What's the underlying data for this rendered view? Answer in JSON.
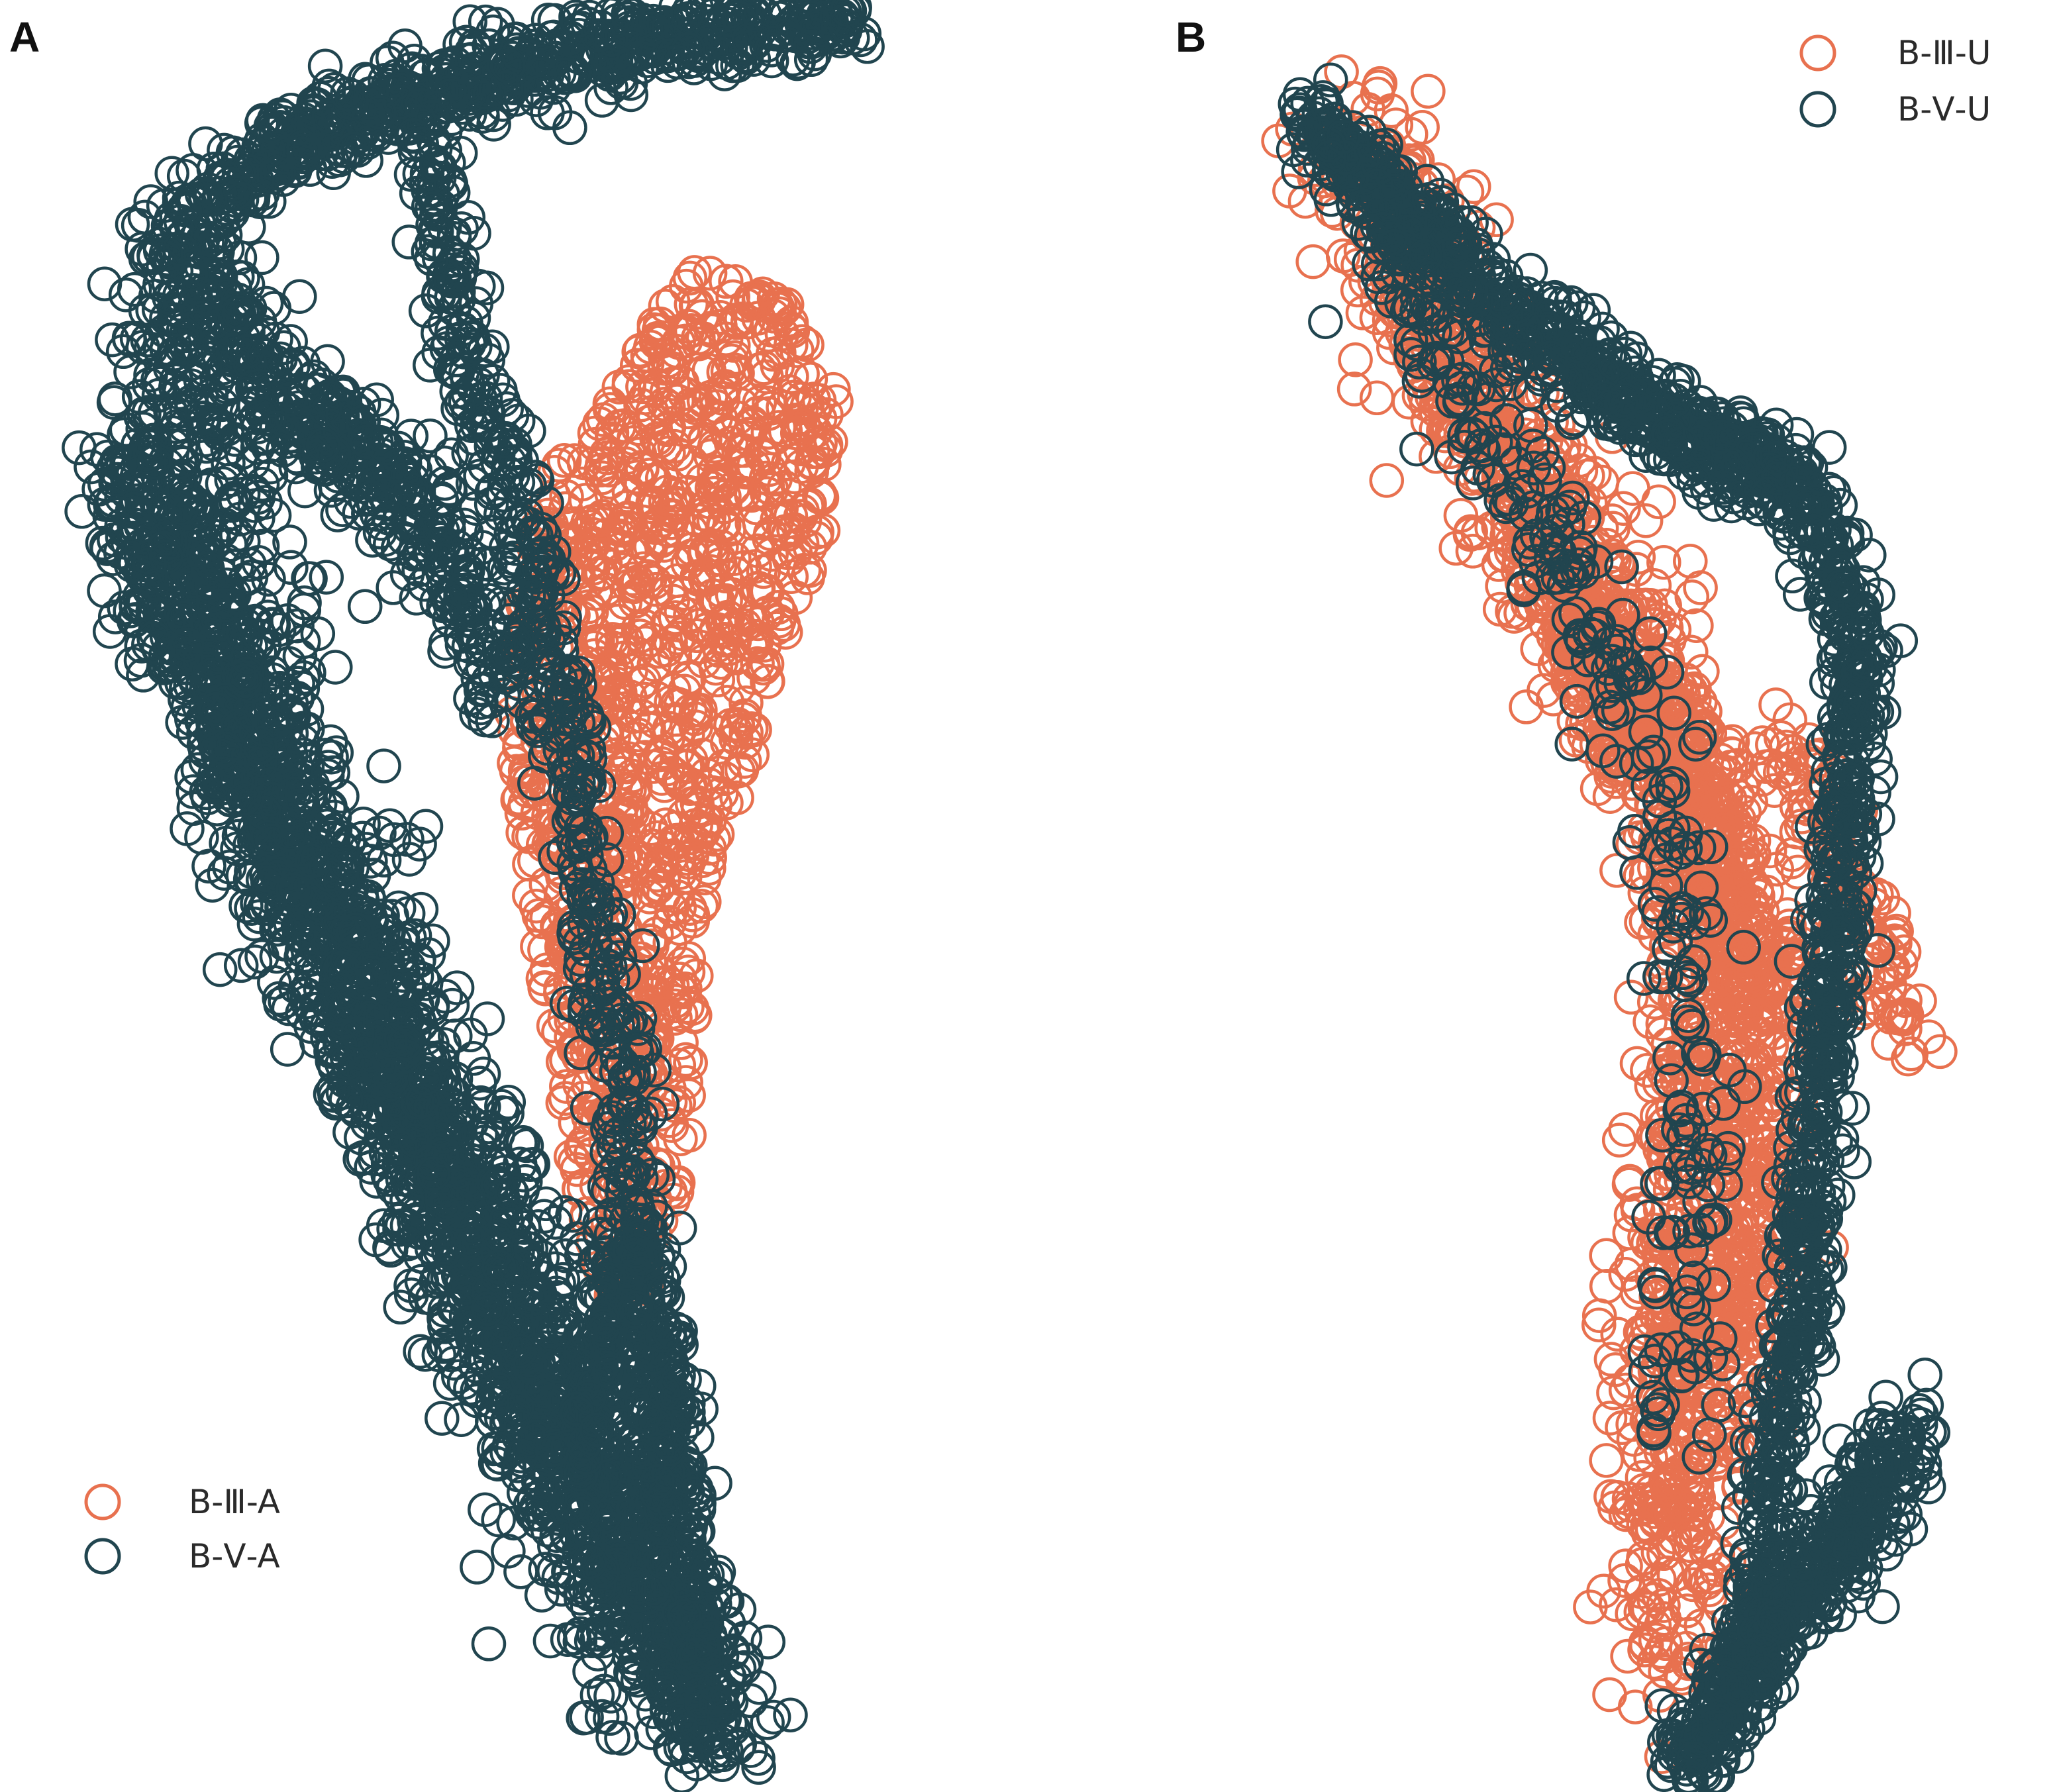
{
  "colors": {
    "series_1": "#e8714f",
    "series_2": "#21454f",
    "background": "#ffffff"
  },
  "chart_data": [
    {
      "panel": "A",
      "type": "scatter",
      "marker": "open-circle",
      "axes_visible": false,
      "grid": false,
      "legend_position": "bottom-left",
      "series": [
        {
          "name": "B-Ⅲ-A",
          "color": "#e8714f",
          "shape_x": [
            0.7,
            0.78,
            0.86,
            0.98,
            1.05,
            1.03,
            0.96,
            0.92,
            0.88,
            0.86,
            0.85,
            0.8,
            0.75,
            0.7,
            0.66,
            0.62,
            0.6,
            0.63,
            0.66
          ],
          "shape_y": [
            0.75,
            0.82,
            0.86,
            0.84,
            0.79,
            0.7,
            0.62,
            0.56,
            0.52,
            0.46,
            0.36,
            0.28,
            0.26,
            0.32,
            0.42,
            0.52,
            0.62,
            0.69,
            0.75
          ],
          "n": 1200
        },
        {
          "name": "B-Ⅴ-A",
          "color": "#21454f",
          "bands": [
            {
              "path": [
                [
                  0.08,
                  0.74
                ],
                [
                  0.3,
                  0.52
                ],
                [
                  0.55,
                  0.3
                ],
                [
                  0.78,
                  0.12
                ],
                [
                  0.9,
                  0.02
                ]
              ],
              "spread": 0.07,
              "n": 1500
            },
            {
              "path": [
                [
                  0.16,
                  0.88
                ],
                [
                  0.26,
                  0.92
                ],
                [
                  0.5,
                  0.96
                ],
                [
                  0.8,
                  0.99
                ],
                [
                  1.08,
                  1.0
                ]
              ],
              "spread": 0.035,
              "n": 700
            },
            {
              "path": [
                [
                  0.12,
                  0.82
                ],
                [
                  0.2,
                  0.7
                ],
                [
                  0.32,
                  0.55
                ],
                [
                  0.45,
                  0.42
                ],
                [
                  0.58,
                  0.3
                ],
                [
                  0.7,
                  0.15
                ],
                [
                  0.82,
                  0.06
                ]
              ],
              "spread": 0.09,
              "n": 1100
            },
            {
              "path": [
                [
                  0.48,
                  0.93
                ],
                [
                  0.56,
                  0.8
                ],
                [
                  0.64,
                  0.68
                ],
                [
                  0.7,
                  0.55
                ],
                [
                  0.74,
                  0.42
                ],
                [
                  0.78,
                  0.3
                ],
                [
                  0.82,
                  0.15
                ]
              ],
              "spread": 0.04,
              "n": 600
            },
            {
              "path": [
                [
                  0.7,
                  0.18
                ],
                [
                  0.76,
                  0.3
                ],
                [
                  0.8,
                  0.28
                ],
                [
                  0.82,
                  0.18
                ],
                [
                  0.88,
                  0.05
                ]
              ],
              "spread": 0.035,
              "n": 300
            },
            {
              "path": [
                [
                  0.14,
                  0.87
                ],
                [
                  0.3,
                  0.78
                ],
                [
                  0.45,
                  0.74
                ],
                [
                  0.6,
                  0.62
                ]
              ],
              "spread": 0.05,
              "n": 500
            }
          ]
        }
      ]
    },
    {
      "panel": "B",
      "type": "scatter",
      "marker": "open-circle",
      "axes_visible": false,
      "grid": false,
      "legend_position": "top-right",
      "series": [
        {
          "name": "B-Ⅲ-U",
          "color": "#e8714f",
          "bands": [
            {
              "path": [
                [
                  0.12,
                  0.96
                ],
                [
                  0.24,
                  0.86
                ],
                [
                  0.38,
                  0.74
                ],
                [
                  0.56,
                  0.62
                ],
                [
                  0.62,
                  0.48
                ],
                [
                  0.58,
                  0.32
                ],
                [
                  0.55,
                  0.18
                ],
                [
                  0.58,
                  0.08
                ]
              ],
              "spread": 0.08,
              "n": 1400
            },
            {
              "path": [
                [
                  0.4,
                  0.7
                ],
                [
                  0.52,
                  0.62
                ],
                [
                  0.62,
                  0.56
                ],
                [
                  0.7,
                  0.46
                ],
                [
                  0.68,
                  0.34
                ],
                [
                  0.62,
                  0.2
                ]
              ],
              "spread": 0.06,
              "n": 700
            },
            {
              "path": [
                [
                  0.72,
                  0.62
                ],
                [
                  0.82,
                  0.52
                ],
                [
                  0.9,
                  0.44
                ]
              ],
              "spread": 0.04,
              "n": 120
            }
          ]
        },
        {
          "name": "B-Ⅴ-U",
          "color": "#21454f",
          "bands": [
            {
              "path": [
                [
                  0.05,
                  0.98
                ],
                [
                  0.3,
                  0.88
                ],
                [
                  0.55,
                  0.8
                ],
                [
                  0.76,
                  0.76
                ],
                [
                  0.83,
                  0.66
                ],
                [
                  0.8,
                  0.52
                ],
                [
                  0.77,
                  0.4
                ],
                [
                  0.74,
                  0.28
                ],
                [
                  0.7,
                  0.16
                ],
                [
                  0.67,
                  0.06
                ]
              ],
              "spread": 0.035,
              "n": 1500
            },
            {
              "path": [
                [
                  0.9,
                  0.2
                ],
                [
                  0.8,
                  0.14
                ],
                [
                  0.72,
                  0.1
                ],
                [
                  0.64,
                  0.05
                ],
                [
                  0.58,
                  0.01
                ]
              ],
              "spread": 0.04,
              "n": 500
            },
            {
              "path": [
                [
                  0.15,
                  0.92
                ],
                [
                  0.28,
                  0.82
                ],
                [
                  0.4,
                  0.72
                ],
                [
                  0.52,
                  0.62
                ],
                [
                  0.58,
                  0.5
                ],
                [
                  0.6,
                  0.35
                ],
                [
                  0.58,
                  0.2
                ]
              ],
              "spread": 0.06,
              "n": 300
            }
          ]
        }
      ]
    }
  ]
}
